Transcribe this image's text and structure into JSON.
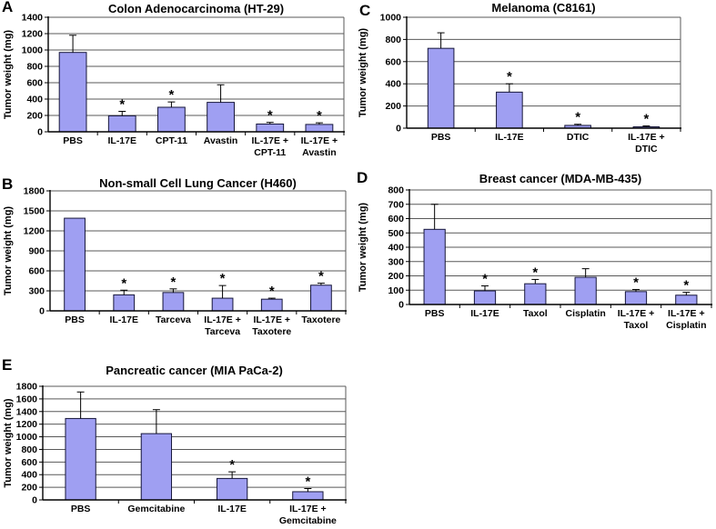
{
  "figure": {
    "description": "Five-panel bar chart figure of tumor weights under IL-17E and chemotherapy treatments",
    "ylabel": "Tumor weight (mg)",
    "sig_symbol": "*",
    "colors": {
      "bar_fill": "#9f9ff2",
      "bar_border": "#16163a",
      "grid": "#595959",
      "axis": "#000000",
      "text": "#000000",
      "background": "#ffffff"
    }
  },
  "chart_data": [
    {
      "panel_label": "A",
      "type": "bar",
      "title": "Colon Adenocarcinoma (HT-29)",
      "ylabel": "Tumor weight (mg)",
      "ylim": [
        0,
        1400
      ],
      "ytick_step": 200,
      "grid": true,
      "legend": "none",
      "categories": [
        "PBS",
        "IL-17E",
        "CPT-11",
        "Avastin",
        "IL-17E + CPT-11",
        "IL-17E + Avastin"
      ],
      "category_lines": [
        [
          "PBS"
        ],
        [
          "IL-17E"
        ],
        [
          "CPT-11"
        ],
        [
          "Avastin"
        ],
        [
          "IL-17E +",
          "CPT-11"
        ],
        [
          "IL-17E +",
          "Avastin"
        ]
      ],
      "values": [
        970,
        195,
        300,
        360,
        95,
        90
      ],
      "errors_plus": [
        210,
        55,
        65,
        215,
        20,
        20
      ],
      "significant": [
        false,
        true,
        true,
        false,
        true,
        true
      ]
    },
    {
      "panel_label": "B",
      "type": "bar",
      "title": "Non-small Cell Lung Cancer (H460)",
      "ylabel": "Tumor weight (mg)",
      "ylim": [
        0,
        1800
      ],
      "ytick_step": 300,
      "grid": true,
      "legend": "none",
      "categories": [
        "PBS",
        "IL-17E",
        "Tarceva",
        "IL-17E + Tarceva",
        "IL-17E + Taxotere",
        "Taxotere"
      ],
      "category_lines": [
        [
          "PBS"
        ],
        [
          "IL-17E"
        ],
        [
          "Tarceva"
        ],
        [
          "IL-17E +",
          "Tarceva"
        ],
        [
          "IL-17E +",
          "Taxotere"
        ],
        [
          "Taxotere"
        ]
      ],
      "values": [
        1390,
        240,
        275,
        190,
        175,
        385
      ],
      "errors_plus": [
        0,
        70,
        55,
        190,
        15,
        30
      ],
      "significant": [
        false,
        true,
        true,
        true,
        true,
        true
      ]
    },
    {
      "panel_label": "C",
      "type": "bar",
      "title": "Melanoma (C8161)",
      "ylabel": "Tumor weight (mg)",
      "ylim": [
        0,
        1000
      ],
      "ytick_step": 200,
      "grid": true,
      "legend": "none",
      "categories": [
        "PBS",
        "IL-17E",
        "DTIC",
        "IL-17E + DTIC"
      ],
      "category_lines": [
        [
          "PBS"
        ],
        [
          "IL-17E"
        ],
        [
          "DTIC"
        ],
        [
          "IL-17E +",
          "DTIC"
        ]
      ],
      "values": [
        720,
        325,
        25,
        12
      ],
      "errors_plus": [
        140,
        75,
        10,
        8
      ],
      "significant": [
        false,
        true,
        true,
        true
      ]
    },
    {
      "panel_label": "D",
      "type": "bar",
      "title": "Breast cancer (MDA-MB-435)",
      "ylabel": "Tumor weight (mg)",
      "ylim": [
        0,
        800
      ],
      "ytick_step": 100,
      "grid": true,
      "legend": "none",
      "categories": [
        "PBS",
        "IL-17E",
        "Taxol",
        "Cisplatin",
        "IL-17E + Taxol",
        "IL-17E + Cisplatin"
      ],
      "category_lines": [
        [
          "PBS"
        ],
        [
          "IL-17E"
        ],
        [
          "Taxol"
        ],
        [
          "Cisplatin"
        ],
        [
          "IL-17E +",
          "Taxol"
        ],
        [
          "IL-17E +",
          "Cisplatin"
        ]
      ],
      "values": [
        525,
        95,
        145,
        190,
        90,
        65
      ],
      "errors_plus": [
        175,
        35,
        30,
        60,
        15,
        20
      ],
      "significant": [
        false,
        true,
        true,
        false,
        true,
        true
      ]
    },
    {
      "panel_label": "E",
      "type": "bar",
      "title": "Pancreatic cancer (MIA PaCa-2)",
      "ylabel": "Tumor weight (mg)",
      "ylim": [
        0,
        1800
      ],
      "ytick_step": 200,
      "grid": true,
      "legend": "none",
      "categories": [
        "PBS",
        "Gemcitabine",
        "IL-17E",
        "IL-17E + Gemcitabine"
      ],
      "category_lines": [
        [
          "PBS"
        ],
        [
          "Gemcitabine"
        ],
        [
          "IL-17E"
        ],
        [
          "IL-17E +",
          "Gemcitabine"
        ]
      ],
      "values": [
        1290,
        1050,
        340,
        130
      ],
      "errors_plus": [
        420,
        380,
        105,
        50
      ],
      "significant": [
        false,
        false,
        true,
        true
      ]
    }
  ]
}
